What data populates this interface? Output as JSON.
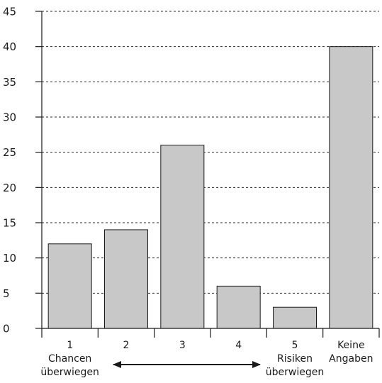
{
  "chart_data": {
    "type": "bar",
    "title": "",
    "xlabel": "",
    "ylabel": "",
    "ylim": [
      0,
      45
    ],
    "yticks": [
      0,
      5,
      10,
      15,
      20,
      25,
      30,
      35,
      40,
      45
    ],
    "grid": true,
    "categories": [
      [
        "1",
        "Chancen",
        "überwiegen"
      ],
      [
        "2"
      ],
      [
        "3"
      ],
      [
        "4"
      ],
      [
        "5",
        "Risiken",
        "überwiegen"
      ],
      [
        "Keine",
        "Angaben"
      ]
    ],
    "values": [
      12,
      14,
      26,
      6,
      3,
      40
    ],
    "annotation": "double-headed arrow spanning categories 1 to 5 (scale from Chancen to Risiken)"
  },
  "colors": {
    "bar_fill": "#c8c8c8",
    "bar_stroke": "#1a1a1a",
    "grid": "#2a2a2a",
    "axis": "#1a1a1a"
  }
}
